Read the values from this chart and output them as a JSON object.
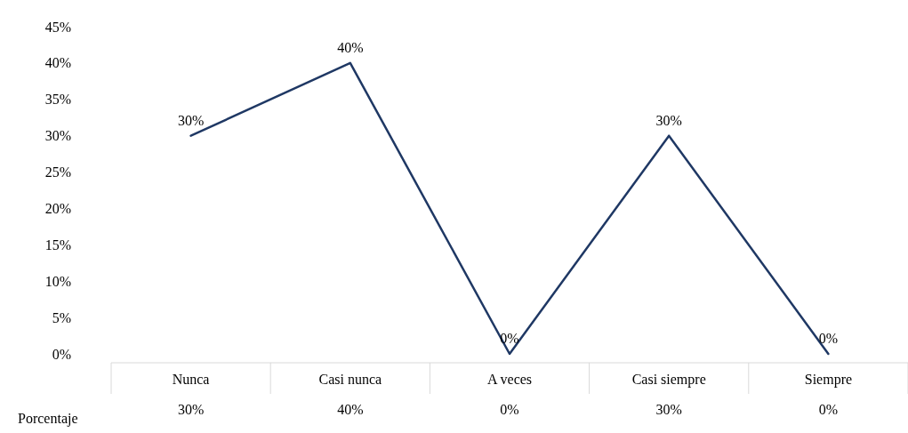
{
  "chart_data": {
    "type": "line",
    "categories": [
      "Nunca",
      "Casi nunca",
      "A veces",
      "Casi siempre",
      "Siempre"
    ],
    "series": [
      {
        "name": "Porcentaje",
        "color": "#1f3864",
        "values": [
          30,
          40,
          0,
          30,
          0
        ],
        "value_labels": [
          "30%",
          "40%",
          "0%",
          "30%",
          "0%"
        ]
      }
    ],
    "ylim": [
      0,
      45
    ],
    "yticks": [
      {
        "value": 0,
        "label": "0%"
      },
      {
        "value": 5,
        "label": "5%"
      },
      {
        "value": 10,
        "label": "10%"
      },
      {
        "value": 15,
        "label": "15%"
      },
      {
        "value": 20,
        "label": "20%"
      },
      {
        "value": 25,
        "label": "25%"
      },
      {
        "value": 30,
        "label": "30%"
      },
      {
        "value": 35,
        "label": "35%"
      },
      {
        "value": 40,
        "label": "40%"
      },
      {
        "value": 45,
        "label": "45%"
      }
    ],
    "grid": false,
    "marker": "none",
    "line_style": "solid"
  }
}
